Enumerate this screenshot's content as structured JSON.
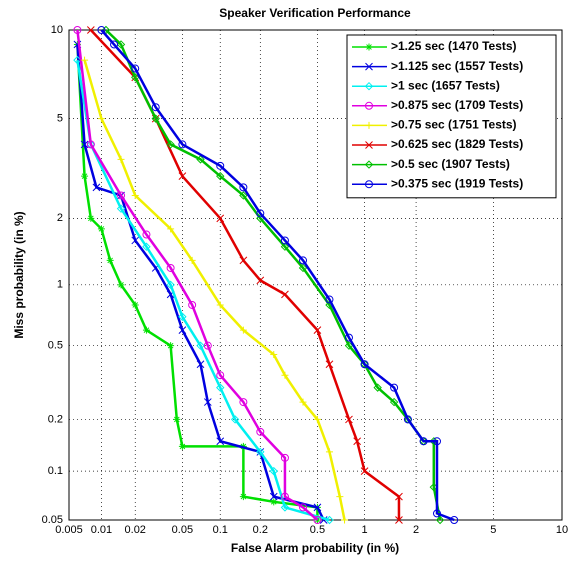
{
  "chart_data": {
    "type": "det",
    "title": "Speaker Verification Performance",
    "x_label": "False Alarm probability (in %)",
    "y_label": "Miss probability (in %)",
    "scale": "probit",
    "grid": true,
    "legend": "upper right",
    "xlim": [
      0.005,
      10
    ],
    "ylim": [
      0.05,
      10
    ],
    "xticks": [
      0.005,
      0.01,
      0.02,
      0.05,
      0.1,
      0.2,
      0.5,
      1,
      2,
      5,
      10
    ],
    "yticks": [
      0.05,
      0.1,
      0.2,
      0.5,
      1,
      2,
      5,
      10
    ],
    "series": [
      {
        "name": ">1.25 sec (1470 Tests)",
        "color": "#00e000",
        "marker": "star",
        "x": [
          0.006,
          0.007,
          0.008,
          0.01,
          0.012,
          0.015,
          0.02,
          0.025,
          0.04,
          0.045,
          0.05,
          0.15,
          0.15,
          0.25,
          0.5,
          0.5
        ],
        "y": [
          9,
          3,
          2,
          1.8,
          1.3,
          1,
          0.8,
          0.6,
          0.5,
          0.2,
          0.14,
          0.14,
          0.07,
          0.065,
          0.06,
          0.05
        ]
      },
      {
        "name": ">1.125 sec (1557 Tests)",
        "color": "#0000e0",
        "marker": "x",
        "x": [
          0.006,
          0.007,
          0.009,
          0.015,
          0.02,
          0.03,
          0.04,
          0.05,
          0.07,
          0.08,
          0.1,
          0.2,
          0.25,
          0.5,
          0.55
        ],
        "y": [
          9,
          4,
          2.7,
          2.5,
          1.6,
          1.2,
          0.9,
          0.6,
          0.4,
          0.25,
          0.15,
          0.13,
          0.07,
          0.06,
          0.05
        ]
      },
      {
        "name": ">1 sec (1657 Tests)",
        "color": "#00f0f0",
        "marker": "diamond",
        "x": [
          0.006,
          0.008,
          0.015,
          0.025,
          0.04,
          0.05,
          0.07,
          0.1,
          0.13,
          0.2,
          0.25,
          0.3,
          0.6
        ],
        "y": [
          8,
          4,
          2.2,
          1.5,
          1,
          0.7,
          0.5,
          0.3,
          0.2,
          0.13,
          0.1,
          0.06,
          0.05
        ]
      },
      {
        "name": ">0.875 sec (1709 Tests)",
        "color": "#e000e0",
        "marker": "circle",
        "x": [
          0.006,
          0.008,
          0.015,
          0.025,
          0.04,
          0.06,
          0.08,
          0.1,
          0.15,
          0.2,
          0.3,
          0.3,
          0.4,
          0.5
        ],
        "y": [
          10,
          4,
          2.5,
          1.7,
          1.2,
          0.8,
          0.5,
          0.35,
          0.25,
          0.17,
          0.12,
          0.07,
          0.06,
          0.05
        ]
      },
      {
        "name": ">0.75 sec (1751 Tests)",
        "color": "#f0f000",
        "marker": "plus",
        "x": [
          0.007,
          0.01,
          0.015,
          0.02,
          0.04,
          0.06,
          0.1,
          0.15,
          0.25,
          0.3,
          0.4,
          0.5,
          0.6,
          0.7,
          0.75
        ],
        "y": [
          8,
          5,
          3.5,
          2.5,
          1.8,
          1.3,
          0.8,
          0.6,
          0.45,
          0.35,
          0.25,
          0.2,
          0.13,
          0.07,
          0.05
        ]
      },
      {
        "name": ">0.625 sec (1829 Tests)",
        "color": "#e00000",
        "marker": "x",
        "x": [
          0.008,
          0.02,
          0.03,
          0.05,
          0.1,
          0.15,
          0.2,
          0.3,
          0.5,
          0.6,
          0.8,
          0.9,
          1,
          1.6,
          1.6
        ],
        "y": [
          10,
          7,
          5,
          3,
          2,
          1.3,
          1.05,
          0.9,
          0.6,
          0.4,
          0.2,
          0.15,
          0.1,
          0.07,
          0.05
        ]
      },
      {
        "name": ">0.5 sec (1907 Tests)",
        "color": "#00c000",
        "marker": "diamond",
        "x": [
          0.011,
          0.015,
          0.02,
          0.03,
          0.04,
          0.07,
          0.1,
          0.15,
          0.2,
          0.3,
          0.4,
          0.6,
          0.8,
          1,
          1.2,
          1.5,
          1.8,
          2.2,
          2.5,
          2.5,
          2.7
        ],
        "y": [
          10,
          9,
          7,
          5,
          4,
          3.5,
          3,
          2.5,
          2,
          1.5,
          1.2,
          0.8,
          0.5,
          0.4,
          0.3,
          0.25,
          0.2,
          0.15,
          0.15,
          0.08,
          0.05
        ]
      },
      {
        "name": ">0.375 sec (1919 Tests)",
        "color": "#0000e0",
        "marker": "circle",
        "x": [
          0.01,
          0.013,
          0.02,
          0.03,
          0.05,
          0.1,
          0.15,
          0.2,
          0.3,
          0.4,
          0.6,
          0.8,
          1,
          1.5,
          1.8,
          2.2,
          2.6,
          2.6,
          3.2
        ],
        "y": [
          10,
          9,
          7.5,
          5.5,
          4,
          3.3,
          2.7,
          2.1,
          1.6,
          1.3,
          0.85,
          0.55,
          0.4,
          0.3,
          0.2,
          0.15,
          0.15,
          0.055,
          0.05
        ]
      }
    ]
  }
}
